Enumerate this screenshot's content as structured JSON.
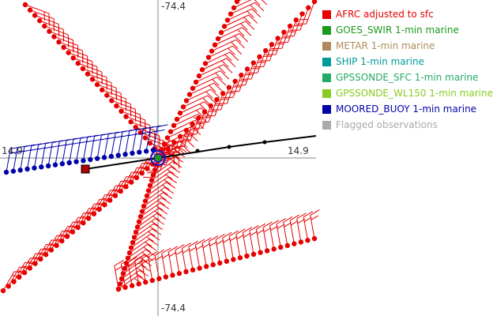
{
  "axes": {
    "lat_label": "-74.4",
    "lat_label_bottom": "-74.4",
    "lon_label_left": "14.9",
    "lon_label_right": "14.9"
  },
  "legend": [
    {
      "name": "AFRC adjusted to sfc",
      "color": "#e60000"
    },
    {
      "name": "GOES_SWIR 1-min marine",
      "color": "#1a9a1a"
    },
    {
      "name": "METAR 1-min marine",
      "color": "#b08a5a"
    },
    {
      "name": "SHIP 1-min marine",
      "color": "#009a9a"
    },
    {
      "name": "GPSSONDE_SFC 1-min marine",
      "color": "#22aa66"
    },
    {
      "name": "GPSSONDE_WL150 1-min marine",
      "color": "#88cc22"
    },
    {
      "name": "MOORED_BUOY 1-min marine",
      "color": "#0000aa"
    },
    {
      "name": "Flagged observations",
      "color": "#aaaaaa"
    }
  ],
  "colors": {
    "afrc": "#e60000",
    "buoy": "#0000aa",
    "track": "#000000",
    "crosshair": "#888888",
    "storm_center_ring": "#1a1acc",
    "storm_center_fill": "#1a9a1a",
    "track_marker": "#b00000"
  }
}
